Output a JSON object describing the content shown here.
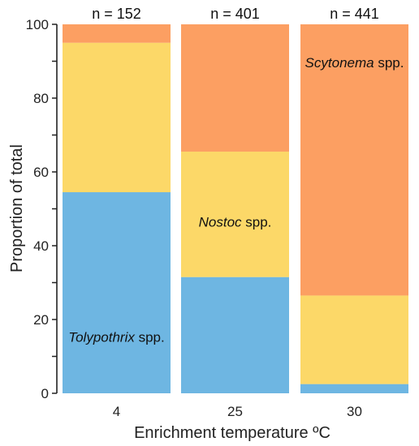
{
  "chart_data": {
    "type": "bar",
    "stacked": true,
    "percent_stacked": true,
    "xlabel": "Enrichment temperature ºC",
    "ylabel": "Proportion of total",
    "ylim": [
      0,
      100
    ],
    "yticks": [
      0,
      20,
      40,
      60,
      80,
      100
    ],
    "grid": false,
    "categories": [
      "4",
      "25",
      "30"
    ],
    "counts": [
      "n = 152",
      "n = 401",
      "n = 441"
    ],
    "series": [
      {
        "name": "Tolypothrix",
        "suffix": " spp.",
        "color": "#6eb6e2",
        "values": [
          54.5,
          31.5,
          2.5
        ]
      },
      {
        "name": "Nostoc",
        "suffix": " spp.",
        "color": "#fcd868",
        "values": [
          40.5,
          34,
          24
        ]
      },
      {
        "name": "Scytonema",
        "suffix": " spp.",
        "color": "#fc9f62",
        "values": [
          5,
          34.5,
          73.5
        ]
      }
    ]
  }
}
